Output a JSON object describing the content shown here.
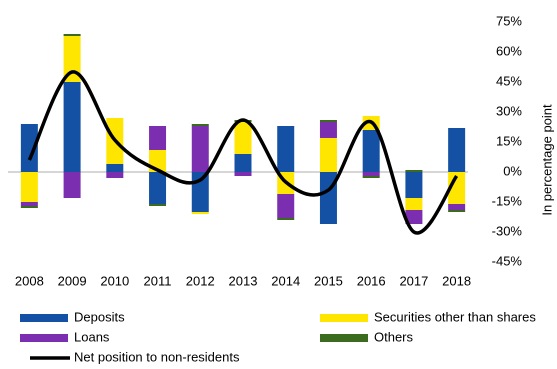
{
  "chart_data": {
    "type": "stacked_bar_line",
    "y_axis_label": "In percentage point",
    "categories": [
      "2008",
      "2009",
      "2010",
      "2011",
      "2012",
      "2013",
      "2014",
      "2015",
      "2016",
      "2017",
      "2018"
    ],
    "series": [
      {
        "name": "Deposits",
        "color": "#1450a3",
        "values": [
          24,
          45,
          4,
          -16,
          -20,
          9,
          23,
          -26,
          21,
          -13,
          22
        ]
      },
      {
        "name": "Securities other than shares",
        "color": "#ffe600",
        "values": [
          -15,
          23,
          23,
          11,
          -1,
          16,
          -11,
          17,
          7,
          -6,
          -16
        ]
      },
      {
        "name": "Loans",
        "color": "#7b2fb0",
        "values": [
          -2,
          -13,
          -3,
          12,
          23,
          -2,
          -12,
          8,
          -2,
          -7,
          -3
        ]
      },
      {
        "name": "Others",
        "color": "#3a6b1e",
        "values": [
          -1,
          1,
          0,
          -1,
          1,
          1,
          -1,
          1,
          -1,
          1,
          -1
        ]
      },
      {
        "name": "Net position to non-residents",
        "color": "#000000",
        "kind": "line",
        "values": [
          6,
          50,
          16,
          1,
          -4,
          26,
          -5,
          -9,
          25,
          -30,
          -2
        ]
      }
    ],
    "ylim": [
      -45,
      75
    ],
    "yticks": [
      {
        "value": 75,
        "label": "75%"
      },
      {
        "value": 60,
        "label": "60%"
      },
      {
        "value": 45,
        "label": "45%"
      },
      {
        "value": 30,
        "label": "30%"
      },
      {
        "value": 15,
        "label": "15%"
      },
      {
        "value": 0,
        "label": "0%"
      },
      {
        "value": -15,
        "label": "-15%"
      },
      {
        "value": -30,
        "label": "-30%"
      },
      {
        "value": -45,
        "label": "-45%"
      }
    ]
  }
}
